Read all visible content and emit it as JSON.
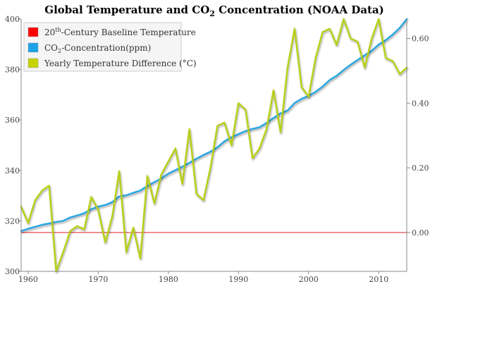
{
  "chart_data": {
    "type": "line",
    "title_main": "Global Temperature and CO",
    "title_sub": "2",
    "title_tail": " Concentration (NOAA Data)",
    "x": [
      1959,
      1960,
      1961,
      1962,
      1963,
      1964,
      1965,
      1966,
      1967,
      1968,
      1969,
      1970,
      1971,
      1972,
      1973,
      1974,
      1975,
      1976,
      1977,
      1978,
      1979,
      1980,
      1981,
      1982,
      1983,
      1984,
      1985,
      1986,
      1987,
      1988,
      1989,
      1990,
      1991,
      1992,
      1993,
      1994,
      1995,
      1996,
      1997,
      1998,
      1999,
      2000,
      2001,
      2002,
      2003,
      2004,
      2005,
      2006,
      2007,
      2008,
      2009,
      2010,
      2011,
      2012,
      2013,
      2014
    ],
    "xlim": [
      1959,
      2014
    ],
    "xticks": [
      1960,
      1970,
      1980,
      1990,
      2000,
      2010
    ],
    "ylim_left": [
      300,
      400
    ],
    "yticks_left": [
      300,
      320,
      340,
      360,
      380,
      400
    ],
    "ylim_right": [
      -0.12,
      0.66
    ],
    "yticks_right": [
      0.0,
      0.2,
      0.4,
      0.6
    ],
    "yticks_right_labels": [
      "0.00",
      "0.20",
      "0.40",
      "0.60"
    ],
    "grid": false,
    "legend_position": "top-left",
    "series": [
      {
        "name_main": "20",
        "name_sup": "th",
        "name_tail": "-Century Baseline Temperature",
        "axis": "right",
        "color": "#e02020",
        "legend_color": "#ff0000",
        "values": [
          0,
          0,
          0,
          0,
          0,
          0,
          0,
          0,
          0,
          0,
          0,
          0,
          0,
          0,
          0,
          0,
          0,
          0,
          0,
          0,
          0,
          0,
          0,
          0,
          0,
          0,
          0,
          0,
          0,
          0,
          0,
          0,
          0,
          0,
          0,
          0,
          0,
          0,
          0,
          0,
          0,
          0,
          0,
          0,
          0,
          0,
          0,
          0,
          0,
          0,
          0,
          0,
          0,
          0,
          0,
          0
        ]
      },
      {
        "name_main": "CO",
        "name_sub": "2",
        "name_tail": "-Concentration(ppm)",
        "axis": "left",
        "color": "#2aa6e0",
        "legend_color": "#1aa3e8",
        "values": [
          315.97,
          316.91,
          317.64,
          318.45,
          318.99,
          319.62,
          320.04,
          321.38,
          322.16,
          323.04,
          324.62,
          325.68,
          326.32,
          327.45,
          329.68,
          330.18,
          331.11,
          332.04,
          333.83,
          335.4,
          336.84,
          338.75,
          340.11,
          341.45,
          343.05,
          344.65,
          346.12,
          347.42,
          349.19,
          351.57,
          353.12,
          354.39,
          355.61,
          356.45,
          357.1,
          358.83,
          360.82,
          362.61,
          363.73,
          366.7,
          368.38,
          369.55,
          371.14,
          373.28,
          375.8,
          377.52,
          379.8,
          381.9,
          383.79,
          385.6,
          387.43,
          389.9,
          391.65,
          393.85,
          396.52,
          400.0
        ]
      },
      {
        "name_main": "Yearly Temperature Difference (°C)",
        "axis": "right",
        "color": "#b8cf1a",
        "legend_color": "#c8d400",
        "values": [
          0.08,
          0.03,
          0.1,
          0.13,
          0.145,
          -0.12,
          -0.06,
          0.005,
          0.02,
          0.01,
          0.11,
          0.07,
          -0.03,
          0.05,
          0.19,
          -0.06,
          0.015,
          -0.08,
          0.175,
          0.09,
          0.18,
          0.22,
          0.26,
          0.15,
          0.32,
          0.12,
          0.1,
          0.2,
          0.33,
          0.34,
          0.27,
          0.4,
          0.38,
          0.23,
          0.26,
          0.32,
          0.44,
          0.31,
          0.51,
          0.63,
          0.45,
          0.42,
          0.54,
          0.62,
          0.63,
          0.58,
          0.66,
          0.6,
          0.59,
          0.51,
          0.6,
          0.66,
          0.54,
          0.53,
          0.49,
          0.51
        ]
      }
    ]
  }
}
